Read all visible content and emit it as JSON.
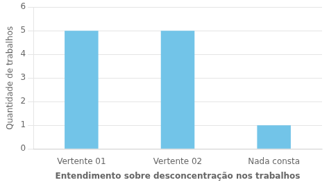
{
  "chart_data": {
    "type": "bar",
    "categories": [
      "Vertente 01",
      "Vertente 02",
      "Nada consta"
    ],
    "values": [
      5,
      5,
      1
    ],
    "color": "#72c4e8",
    "xlabel": "Entendimento sobre desconcentração nos trabalhos",
    "ylabel": "Quantidade de trabalhos",
    "ylim": [
      0,
      6
    ],
    "yticks": [
      0,
      1,
      2,
      3,
      4,
      5,
      6
    ],
    "grid": true
  }
}
